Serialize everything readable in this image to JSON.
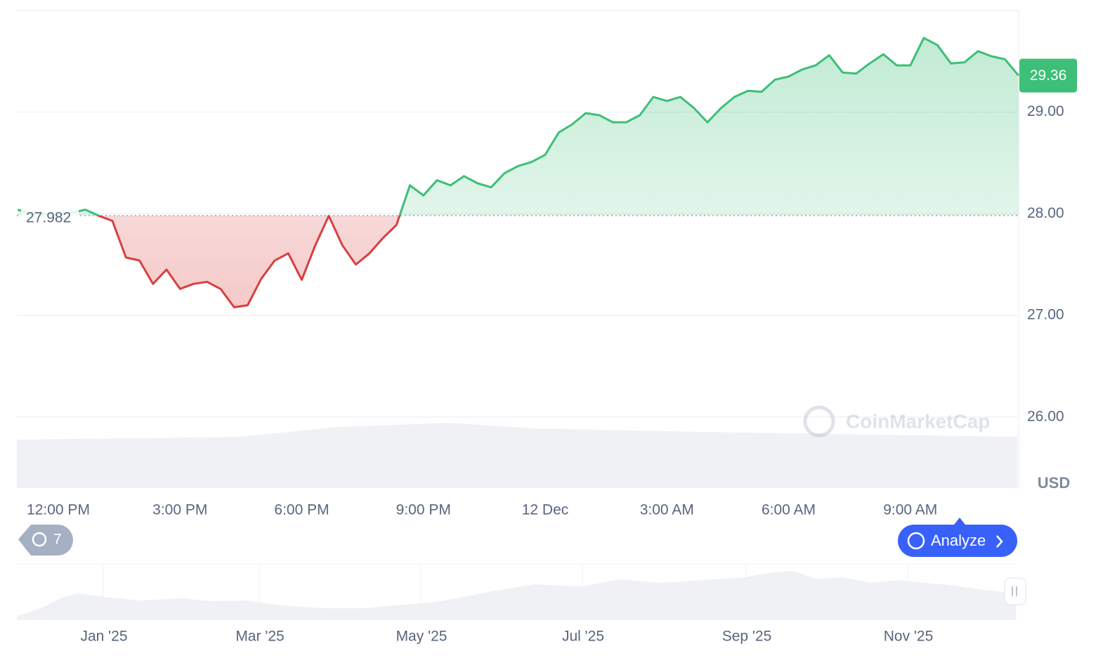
{
  "chart_data": {
    "type": "line",
    "categories": [
      null,
      null,
      null,
      "12:00 PM",
      null,
      null,
      null,
      null,
      null,
      null,
      null,
      null,
      "3:00 PM",
      null,
      null,
      null,
      null,
      null,
      null,
      null,
      null,
      "6:00 PM",
      null,
      null,
      null,
      null,
      null,
      null,
      null,
      null,
      "9:00 PM",
      null,
      null,
      null,
      null,
      null,
      null,
      null,
      null,
      "12 Dec",
      null,
      null,
      null,
      null,
      null,
      null,
      null,
      null,
      "3:00 AM",
      null,
      null,
      null,
      null,
      null,
      null,
      null,
      null,
      "6:00 AM",
      null,
      null,
      null,
      null,
      null,
      null,
      null,
      null,
      "9:00 AM",
      null,
      null,
      null,
      null,
      null,
      null,
      null,
      null
    ],
    "values": [
      28.04,
      28.0,
      28.0,
      27.99,
      28.01,
      28.04,
      27.98,
      27.93,
      27.57,
      27.54,
      27.31,
      27.45,
      27.26,
      27.31,
      27.33,
      27.26,
      27.08,
      27.1,
      27.36,
      27.54,
      27.61,
      27.35,
      27.69,
      27.98,
      27.69,
      27.5,
      27.61,
      27.76,
      27.89,
      28.28,
      28.18,
      28.33,
      28.28,
      28.37,
      28.3,
      28.26,
      28.4,
      28.47,
      28.51,
      28.58,
      28.8,
      28.88,
      28.99,
      28.97,
      28.9,
      28.9,
      28.97,
      29.15,
      29.11,
      29.15,
      29.04,
      28.9,
      29.04,
      29.15,
      29.21,
      29.2,
      29.32,
      29.35,
      29.42,
      29.46,
      29.56,
      29.39,
      29.38,
      29.48,
      29.57,
      29.46,
      29.46,
      29.73,
      29.66,
      29.48,
      29.49,
      29.6,
      29.55,
      29.52,
      29.36
    ],
    "baseline": 27.982,
    "last_price": 29.36,
    "up_color": "#3dbf77",
    "down_color": "#d93f3f",
    "ylim": [
      25.3,
      30.0
    ],
    "yticks": [
      {
        "value": 26,
        "label": "26.00"
      },
      {
        "value": 27,
        "label": "27.00"
      },
      {
        "value": 28,
        "label": "28.00"
      },
      {
        "value": 29,
        "label": "29.00"
      }
    ],
    "grid": true,
    "currency": "USD",
    "watermark": "CoinMarketCap",
    "history_count": "7",
    "analyze_button": "Analyze",
    "navigator_labels": [
      "Jan '25",
      "Mar '25",
      "May '25",
      "Jul '25",
      "Sep '25",
      "Nov '25"
    ]
  }
}
